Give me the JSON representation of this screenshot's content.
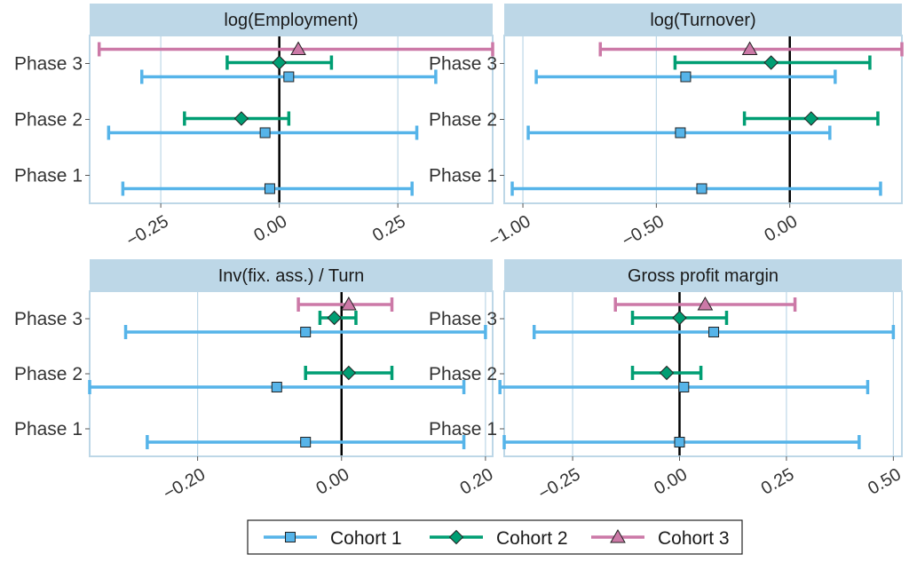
{
  "colors": {
    "Cohort 1": "#56B4E9",
    "Cohort 2": "#009E73",
    "Cohort 3": "#CC79A7",
    "strip_bg": "#BDD7E7",
    "panel_border": "#BDD7E7",
    "grid": "#BDD7E7",
    "zero_line": "#000000"
  },
  "legend": {
    "position": "bottom",
    "items": [
      {
        "label": "Cohort 1",
        "marker": "square"
      },
      {
        "label": "Cohort 2",
        "marker": "diamond"
      },
      {
        "label": "Cohort 3",
        "marker": "triangle"
      }
    ]
  },
  "chart_data": [
    {
      "type": "scatter",
      "title": "log(Employment)",
      "categories": [
        "Phase 1",
        "Phase 2",
        "Phase 3"
      ],
      "xlim": [
        -0.4,
        0.45
      ],
      "xticks": [
        -0.25,
        0.0,
        0.25
      ],
      "xtick_labels": [
        "−0.25",
        "0.00",
        "0.25"
      ],
      "series": [
        {
          "name": "Cohort 1",
          "marker": "square",
          "points": [
            {
              "phase": "Phase 1",
              "est": -0.02,
              "lo": -0.33,
              "hi": 0.28
            },
            {
              "phase": "Phase 2",
              "est": -0.03,
              "lo": -0.36,
              "hi": 0.29
            },
            {
              "phase": "Phase 3",
              "est": 0.02,
              "lo": -0.29,
              "hi": 0.33
            }
          ]
        },
        {
          "name": "Cohort 2",
          "marker": "diamond",
          "points": [
            {
              "phase": "Phase 2",
              "est": -0.08,
              "lo": -0.2,
              "hi": 0.02
            },
            {
              "phase": "Phase 3",
              "est": 0.0,
              "lo": -0.11,
              "hi": 0.11
            }
          ]
        },
        {
          "name": "Cohort 3",
          "marker": "triangle",
          "points": [
            {
              "phase": "Phase 3",
              "est": 0.04,
              "lo": -0.38,
              "hi": 0.45
            }
          ]
        }
      ]
    },
    {
      "type": "scatter",
      "title": "log(Turnover)",
      "categories": [
        "Phase 1",
        "Phase 2",
        "Phase 3"
      ],
      "xlim": [
        -1.07,
        0.42
      ],
      "xticks": [
        -1.0,
        -0.5,
        0.0
      ],
      "xtick_labels": [
        "−1.00",
        "−0.50",
        "0.00"
      ],
      "series": [
        {
          "name": "Cohort 1",
          "marker": "square",
          "points": [
            {
              "phase": "Phase 1",
              "est": -0.33,
              "lo": -1.04,
              "hi": 0.34
            },
            {
              "phase": "Phase 2",
              "est": -0.41,
              "lo": -0.98,
              "hi": 0.15
            },
            {
              "phase": "Phase 3",
              "est": -0.39,
              "lo": -0.95,
              "hi": 0.17
            }
          ]
        },
        {
          "name": "Cohort 2",
          "marker": "diamond",
          "points": [
            {
              "phase": "Phase 2",
              "est": 0.08,
              "lo": -0.17,
              "hi": 0.33
            },
            {
              "phase": "Phase 3",
              "est": -0.07,
              "lo": -0.43,
              "hi": 0.3
            }
          ]
        },
        {
          "name": "Cohort 3",
          "marker": "triangle",
          "points": [
            {
              "phase": "Phase 3",
              "est": -0.15,
              "lo": -0.71,
              "hi": 0.42
            }
          ]
        }
      ]
    },
    {
      "type": "scatter",
      "title": "Inv(fix. ass.) / Turn",
      "categories": [
        "Phase 1",
        "Phase 2",
        "Phase 3"
      ],
      "xlim": [
        -0.35,
        0.21
      ],
      "xticks": [
        -0.2,
        0.0,
        0.2
      ],
      "xtick_labels": [
        "−0.20",
        "0.00",
        "0.20"
      ],
      "series": [
        {
          "name": "Cohort 1",
          "marker": "square",
          "points": [
            {
              "phase": "Phase 1",
              "est": -0.05,
              "lo": -0.27,
              "hi": 0.17
            },
            {
              "phase": "Phase 2",
              "est": -0.09,
              "lo": -0.35,
              "hi": 0.17
            },
            {
              "phase": "Phase 3",
              "est": -0.05,
              "lo": -0.3,
              "hi": 0.2
            }
          ]
        },
        {
          "name": "Cohort 2",
          "marker": "diamond",
          "points": [
            {
              "phase": "Phase 2",
              "est": 0.01,
              "lo": -0.05,
              "hi": 0.07
            },
            {
              "phase": "Phase 3",
              "est": -0.01,
              "lo": -0.03,
              "hi": 0.02
            }
          ]
        },
        {
          "name": "Cohort 3",
          "marker": "triangle",
          "points": [
            {
              "phase": "Phase 3",
              "est": 0.01,
              "lo": -0.06,
              "hi": 0.07
            }
          ]
        }
      ]
    },
    {
      "type": "scatter",
      "title": "Gross profit margin",
      "categories": [
        "Phase 1",
        "Phase 2",
        "Phase 3"
      ],
      "xlim": [
        -0.41,
        0.52
      ],
      "xticks": [
        -0.25,
        0.0,
        0.25,
        0.5
      ],
      "xtick_labels": [
        "−0.25",
        "0.00",
        "0.25",
        "0.50"
      ],
      "series": [
        {
          "name": "Cohort 1",
          "marker": "square",
          "points": [
            {
              "phase": "Phase 1",
              "est": 0.0,
              "lo": -0.41,
              "hi": 0.42
            },
            {
              "phase": "Phase 2",
              "est": 0.01,
              "lo": -0.42,
              "hi": 0.44
            },
            {
              "phase": "Phase 3",
              "est": 0.08,
              "lo": -0.34,
              "hi": 0.5
            }
          ]
        },
        {
          "name": "Cohort 2",
          "marker": "diamond",
          "points": [
            {
              "phase": "Phase 2",
              "est": -0.03,
              "lo": -0.11,
              "hi": 0.05
            },
            {
              "phase": "Phase 3",
              "est": 0.0,
              "lo": -0.11,
              "hi": 0.11
            }
          ]
        },
        {
          "name": "Cohort 3",
          "marker": "triangle",
          "points": [
            {
              "phase": "Phase 3",
              "est": 0.06,
              "lo": -0.15,
              "hi": 0.27
            }
          ]
        }
      ]
    }
  ]
}
